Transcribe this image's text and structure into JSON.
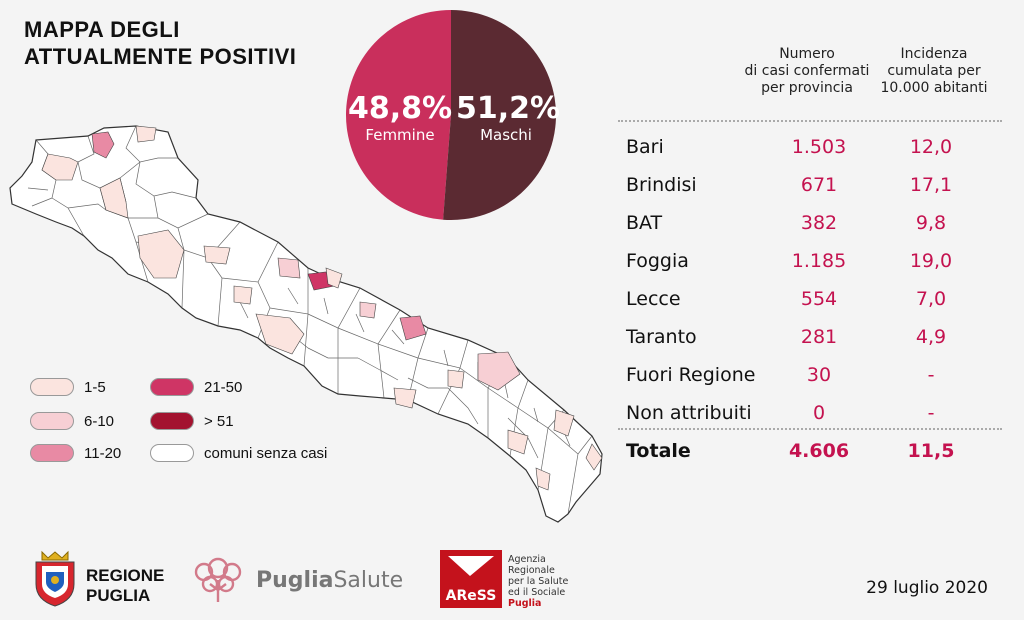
{
  "title": {
    "line1": "MAPPA DEGLI",
    "line2": "ATTUALMENTE POSITIVI"
  },
  "gender": {
    "female": {
      "pct": "48,8%",
      "label": "Femmine",
      "value": 48.8,
      "color": "#c92f5c"
    },
    "male": {
      "pct": "51,2%",
      "label": "Maschi",
      "value": 51.2,
      "color": "#5b2a32"
    }
  },
  "legend": [
    {
      "label": "1-5",
      "color": "#fbe4df"
    },
    {
      "label": "6-10",
      "color": "#f7cfd4"
    },
    {
      "label": "11-20",
      "color": "#e88aa4"
    },
    {
      "label": "21-50",
      "color": "#cf3565"
    },
    {
      "label": "> 51",
      "color": "#a3122f"
    },
    {
      "label": "comuni senza casi",
      "color": "#ffffff"
    }
  ],
  "table": {
    "header_cases": "Numero\ndi casi confermati\nper provincia",
    "header_incidence": "Incidenza\ncumulata per\n10.000 abitanti",
    "rows": [
      {
        "province": "Bari",
        "cases": "1.503",
        "incidence": "12,0"
      },
      {
        "province": "Brindisi",
        "cases": "671",
        "incidence": "17,1"
      },
      {
        "province": "BAT",
        "cases": "382",
        "incidence": "9,8"
      },
      {
        "province": "Foggia",
        "cases": "1.185",
        "incidence": "19,0"
      },
      {
        "province": "Lecce",
        "cases": "554",
        "incidence": "7,0"
      },
      {
        "province": "Taranto",
        "cases": "281",
        "incidence": "4,9"
      },
      {
        "province": "Fuori Regione",
        "cases": "30",
        "incidence": "-"
      },
      {
        "province": "Non attribuiti",
        "cases": "0",
        "incidence": "-"
      }
    ],
    "total": {
      "label": "Totale",
      "cases": "4.606",
      "incidence": "11,5"
    }
  },
  "footer": {
    "regione_line1": "REGIONE",
    "regione_line2": "PUGLIA",
    "puglia_salute_a": "Puglia",
    "puglia_salute_b": "Salute",
    "aress_logo_text": "AReSS",
    "agency_lines": [
      "Agenzia",
      "Regionale",
      "per la Salute",
      "ed il Sociale"
    ],
    "agency_region": "Puglia",
    "date": "29 luglio 2020"
  }
}
